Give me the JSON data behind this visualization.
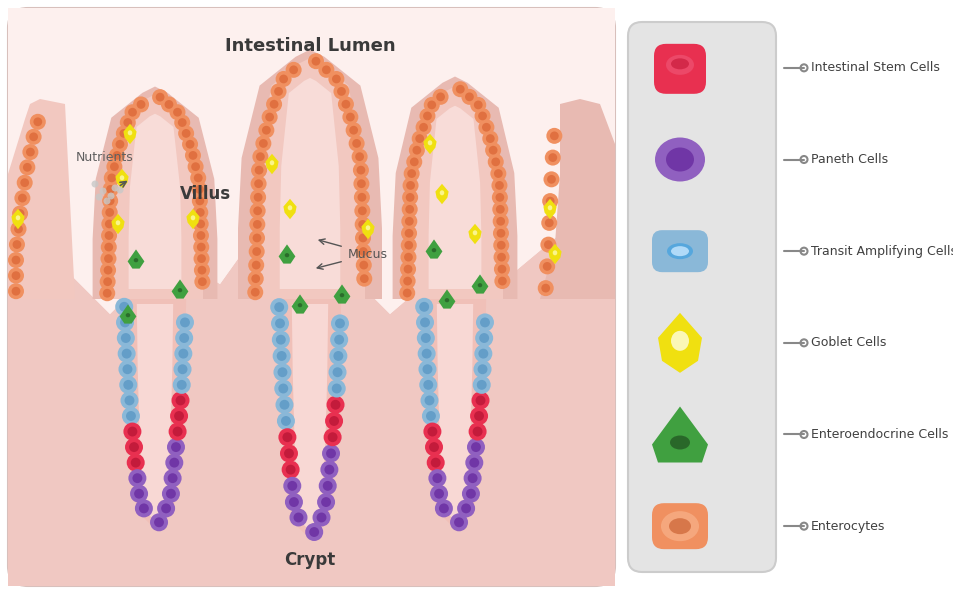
{
  "panel_bg": "#fce8e4",
  "lumen_color": "#fdf0ee",
  "tissue_color": "#f0c8c2",
  "tissue_shadow": "#e8b8b0",
  "villus_inner": "#f5d5d0",
  "crypt_inner": "#f0c0b8",
  "enterocyte_outer": "#f09060",
  "enterocyte_inner": "#d86030",
  "transit_outer": "#8ab8d8",
  "transit_inner": "#5090c0",
  "stem_outer": "#e83050",
  "stem_inner": "#b01030",
  "paneth_outer": "#9060c0",
  "paneth_inner": "#602098",
  "goblet_outer": "#f0e010",
  "goblet_inner": "#ffffff",
  "entendo_outer": "#40a040",
  "entendo_inner": "#205020",
  "legend_bg": "#e0e0e0",
  "legend_labels": [
    "Intestinal Stem Cells",
    "Paneth Cells",
    "Transit Amplifying Cells",
    "Goblet Cells",
    "Enteroendocrine Cells",
    "Enterocytes"
  ],
  "legend_outer": [
    "#e83050",
    "#9060c0",
    "#8ab8d8",
    "#f0e010",
    "#40a040",
    "#f09060"
  ],
  "legend_inner": [
    "#c01030",
    "#602098",
    "#3070a0",
    "#d4c800",
    "#205020",
    "#c05020"
  ]
}
